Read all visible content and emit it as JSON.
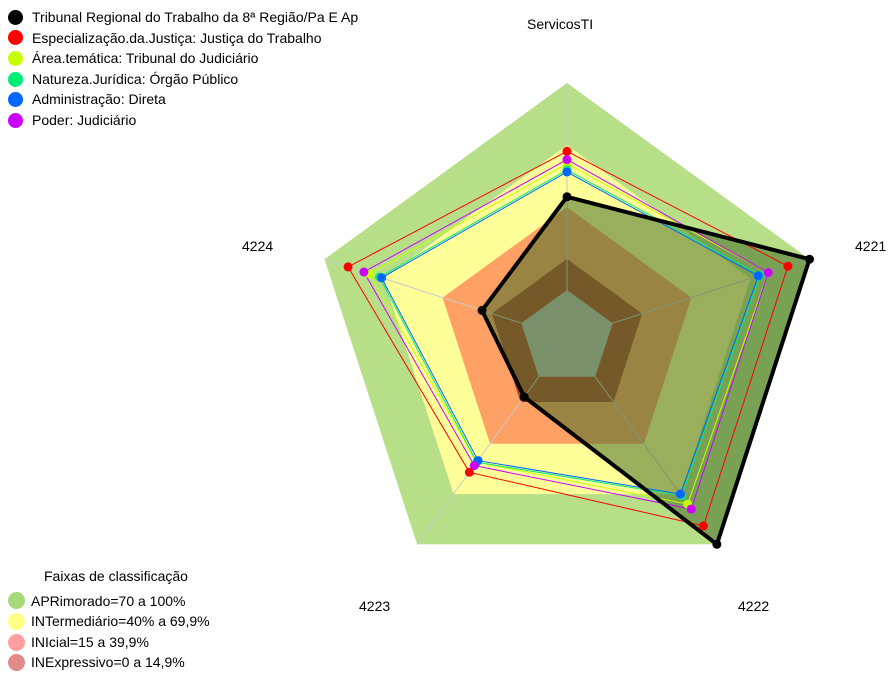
{
  "chart_data": {
    "type": "radar",
    "title": "",
    "axes": [
      "ServicosTI",
      "4221",
      "4222",
      "4223",
      "4224"
    ],
    "range": [
      0,
      100
    ],
    "series": [
      {
        "name": "Tribunal Regional do Trabalho da 8ª Região/Pa E Ap",
        "color": "#000000",
        "values": [
          45,
          100,
          100,
          12,
          20
        ]
      },
      {
        "name": "Especialização.da.Justiça: Justiça do Trabalho",
        "color": "#ff0000",
        "values": [
          67,
          89,
          89,
          57,
          88
        ]
      },
      {
        "name": "Área.temática: Tribunal do Judiciário",
        "color": "#c8ff00",
        "values": [
          61,
          79,
          76,
          51,
          77
        ]
      },
      {
        "name": "Natureza.Jurídica: Órgão Público",
        "color": "#00ee77",
        "values": [
          58,
          75,
          71,
          51,
          72
        ]
      },
      {
        "name": "Administração: Direta",
        "color": "#0066ff",
        "values": [
          57,
          74,
          70,
          50,
          71
        ]
      },
      {
        "name": "Poder: Judiciário",
        "color": "#cc00ff",
        "values": [
          63,
          79,
          79,
          53,
          80
        ]
      }
    ],
    "bands": {
      "title": "Faixas de classificação",
      "items": [
        {
          "label": "APRimorado=70 a 100%",
          "from": 70,
          "to": 100,
          "color": "#b6df88",
          "legend_color": "#a6d97a"
        },
        {
          "label": "INTermediário=40% a 69,9%",
          "from": 40,
          "to": 70,
          "color": "#ffff99",
          "legend_color": "#ffff88"
        },
        {
          "label": "INIcial=15 a 39,9%",
          "from": 15,
          "to": 40,
          "color": "#ffa064",
          "legend_color": "#ff9f9f"
        },
        {
          "label": "INExpressivo=0 a 14,9%",
          "from": 0,
          "to": 15,
          "color": "#b0402a",
          "legend_color": "#e08a8a"
        }
      ]
    }
  }
}
